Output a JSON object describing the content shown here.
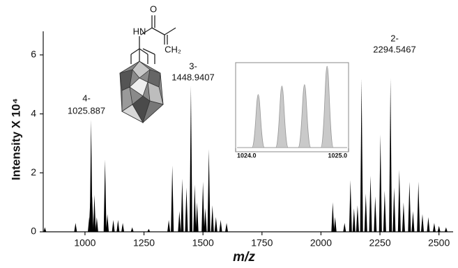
{
  "chart_data": [
    {
      "type": "spectrum",
      "ylabel": "Intensity X 10⁴",
      "xlabel": "m/z",
      "xlim": [
        823,
        2560
      ],
      "xticks": [
        1000,
        1250,
        1500,
        1750,
        2000,
        2250,
        2500
      ],
      "ylim": [
        0,
        6.8
      ],
      "yticks": [
        0,
        2,
        4,
        6
      ],
      "color": "#000000",
      "x": [
        830,
        960,
        1018,
        1022,
        1025.887,
        1030,
        1040,
        1050,
        1085,
        1095,
        1120,
        1140,
        1160,
        1200,
        1270,
        1355,
        1370,
        1400,
        1412,
        1430,
        1448.9407,
        1465,
        1475,
        1500,
        1510,
        1525,
        1540,
        1555,
        1575,
        1600,
        2050,
        2060,
        2100,
        2125,
        2140,
        2155,
        2172,
        2190,
        2210,
        2230,
        2252,
        2270,
        2294.5467,
        2310,
        2332,
        2350,
        2375,
        2390,
        2413,
        2430,
        2455,
        2480,
        2500,
        2530
      ],
      "values": [
        0.15,
        0.3,
        0.5,
        1.0,
        3.8,
        1.2,
        1.25,
        0.5,
        2.45,
        0.6,
        0.4,
        0.4,
        0.3,
        0.15,
        0.1,
        0.4,
        2.25,
        0.7,
        1.8,
        1.5,
        4.95,
        1.6,
        1.0,
        1.7,
        0.8,
        2.8,
        0.9,
        0.5,
        0.4,
        0.3,
        1.0,
        0.5,
        0.3,
        1.75,
        0.8,
        0.9,
        5.2,
        1.3,
        1.9,
        1.2,
        3.3,
        1.4,
        5.2,
        1.5,
        2.1,
        1.0,
        1.7,
        0.7,
        1.7,
        0.6,
        0.5,
        0.3,
        0.2,
        0.15
      ],
      "annotations": [
        [
          "4-",
          "1025.887"
        ],
        [
          "3-",
          "1448.9407"
        ],
        [
          "2-",
          "2294.5467"
        ]
      ]
    },
    {
      "type": "inset",
      "xlim": [
        1024.0,
        1025.0
      ],
      "xticks": [
        {
          "value": 1024.0,
          "label": "1024.0"
        },
        {
          "value": 1025.0,
          "label": "1025.0"
        }
      ],
      "ylim": [
        0,
        120
      ],
      "color": "#c9c9c9",
      "x": [
        1024.2,
        1024.41,
        1024.61,
        1024.81
      ],
      "values": [
        75,
        87,
        89,
        115
      ]
    }
  ],
  "structure": {
    "labels": [
      "O",
      "HN",
      "CH₂"
    ]
  }
}
